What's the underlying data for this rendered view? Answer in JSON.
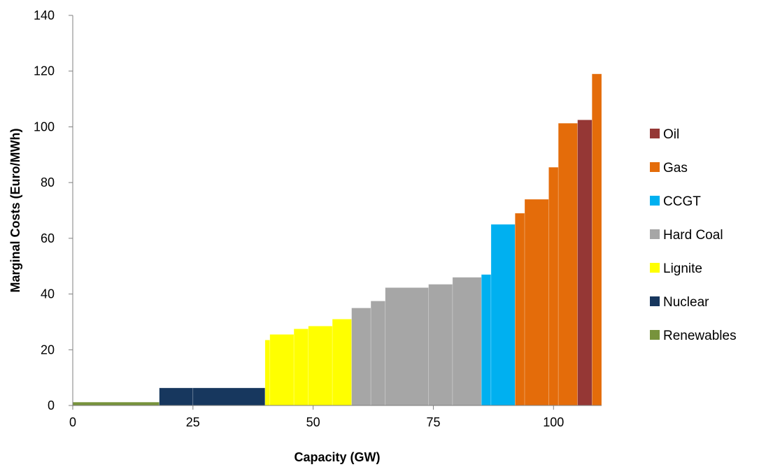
{
  "chart_data": {
    "type": "bar",
    "subtype": "merit-order step chart (variable-width bars)",
    "title": "",
    "xlabel": "Capacity (GW)",
    "ylabel": "Marginal Costs (Euro/MWh)",
    "xlim": [
      0,
      110
    ],
    "ylim": [
      0,
      140
    ],
    "xticks": [
      0,
      25,
      50,
      75,
      100
    ],
    "yticks": [
      0,
      20,
      40,
      60,
      80,
      100,
      120,
      140
    ],
    "grid": false,
    "legend_position": "right",
    "series": [
      {
        "name": "Renewables",
        "color": "#77933c",
        "blocks": [
          {
            "x0": 0,
            "x1": 18,
            "value": 1.2
          }
        ]
      },
      {
        "name": "Nuclear",
        "color": "#17375e",
        "blocks": [
          {
            "x0": 18,
            "x1": 25,
            "value": 6.3
          },
          {
            "x0": 25,
            "x1": 40,
            "value": 6.3
          }
        ]
      },
      {
        "name": "Lignite",
        "color": "#ffff00",
        "blocks": [
          {
            "x0": 40,
            "x1": 41,
            "value": 23.5
          },
          {
            "x0": 41,
            "x1": 46,
            "value": 25.5
          },
          {
            "x0": 46,
            "x1": 49,
            "value": 27.5
          },
          {
            "x0": 49,
            "x1": 54,
            "value": 28.5
          },
          {
            "x0": 54,
            "x1": 58,
            "value": 31
          }
        ]
      },
      {
        "name": "Hard Coal",
        "color": "#a6a6a6",
        "blocks": [
          {
            "x0": 58,
            "x1": 62,
            "value": 35
          },
          {
            "x0": 62,
            "x1": 65,
            "value": 37.5
          },
          {
            "x0": 65,
            "x1": 74,
            "value": 42.3
          },
          {
            "x0": 74,
            "x1": 79,
            "value": 43.5
          },
          {
            "x0": 79,
            "x1": 85,
            "value": 46
          }
        ]
      },
      {
        "name": "CCGT",
        "color": "#00b0f0",
        "blocks": [
          {
            "x0": 85,
            "x1": 87,
            "value": 47
          },
          {
            "x0": 87,
            "x1": 92,
            "value": 65
          }
        ]
      },
      {
        "name": "Gas",
        "color": "#e46c0a",
        "blocks": [
          {
            "x0": 92,
            "x1": 94,
            "value": 69
          },
          {
            "x0": 94,
            "x1": 99,
            "value": 74
          },
          {
            "x0": 99,
            "x1": 101,
            "value": 85.5
          },
          {
            "x0": 101,
            "x1": 105,
            "value": 101.3
          },
          {
            "x0": 108,
            "x1": 110,
            "value": 119
          }
        ]
      },
      {
        "name": "Oil",
        "color": "#953735",
        "blocks": [
          {
            "x0": 105,
            "x1": 108,
            "value": 102.5
          }
        ]
      }
    ],
    "legend": [
      "Oil",
      "Gas",
      "CCGT",
      "Hard Coal",
      "Lignite",
      "Nuclear",
      "Renewables"
    ]
  }
}
